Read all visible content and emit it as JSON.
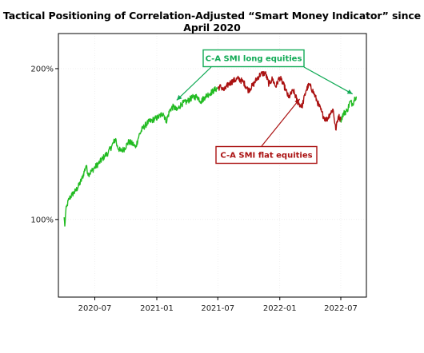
{
  "title": "Tactical Positioning of Correlation-Adjusted “Smart Money Indicator” since April 2020",
  "colors": {
    "long": "#22bb22",
    "flat": "#aa1111",
    "long_annotation": "#11aa55",
    "flat_annotation": "#aa1111",
    "gridline": "#e6e6e6",
    "frame": "#000000"
  },
  "chart_data": {
    "type": "line",
    "title": "Tactical Positioning of Correlation-Adjusted “Smart Money Indicator” since April 2020",
    "xlabel": "",
    "ylabel": "",
    "y_scale": "log",
    "ylim": [
      70,
      235
    ],
    "xlim": [
      "2020-03-15",
      "2022-09-15"
    ],
    "grid": true,
    "x_ticks": [
      "2020-07-01",
      "2021-01-01",
      "2021-07-01",
      "2022-01-01",
      "2022-07-01"
    ],
    "x_tick_labels": [
      "2020-07",
      "2021-01",
      "2021-07",
      "2022-01",
      "2022-07"
    ],
    "y_ticks": [
      100,
      200
    ],
    "y_tick_labels": [
      "100%",
      "200%"
    ],
    "series": [
      {
        "name": "C-A SMI long equities",
        "color": "#22bb22",
        "points": [
          [
            "2020-04-01",
            101
          ],
          [
            "2020-04-03",
            97
          ],
          [
            "2020-04-06",
            104
          ],
          [
            "2020-04-10",
            107
          ],
          [
            "2020-04-16",
            110
          ],
          [
            "2020-04-24",
            112
          ],
          [
            "2020-05-05",
            114
          ],
          [
            "2020-05-15",
            117
          ],
          [
            "2020-05-25",
            121
          ],
          [
            "2020-06-05",
            128
          ],
          [
            "2020-06-12",
            123
          ],
          [
            "2020-06-22",
            125
          ],
          [
            "2020-07-01",
            127
          ],
          [
            "2020-07-15",
            130
          ],
          [
            "2020-07-31",
            134
          ],
          [
            "2020-08-10",
            136
          ],
          [
            "2020-08-20",
            140
          ],
          [
            "2020-09-01",
            145
          ],
          [
            "2020-09-05",
            140
          ],
          [
            "2020-09-15",
            137
          ],
          [
            "2020-09-25",
            138
          ],
          [
            "2020-10-10",
            143
          ],
          [
            "2020-10-25",
            141
          ],
          [
            "2020-10-30",
            139
          ],
          [
            "2020-11-09",
            147
          ],
          [
            "2020-11-20",
            152
          ],
          [
            "2020-12-05",
            156
          ],
          [
            "2020-12-20",
            158
          ],
          [
            "2021-01-05",
            160
          ],
          [
            "2021-01-20",
            163
          ],
          [
            "2021-01-29",
            157
          ],
          [
            "2021-02-10",
            166
          ],
          [
            "2021-02-20",
            168
          ],
          [
            "2021-03-01",
            165
          ],
          [
            "2021-03-15",
            170
          ],
          [
            "2021-04-01",
            172
          ],
          [
            "2021-04-15",
            175
          ],
          [
            "2021-05-01",
            176
          ],
          [
            "2021-05-12",
            172
          ],
          [
            "2021-05-25",
            176
          ],
          [
            "2021-06-10",
            179
          ],
          [
            "2021-06-25",
            182
          ],
          [
            "2021-07-01",
            183
          ]
        ]
      },
      {
        "name": "C-A SMI flat equities",
        "color": "#aa1111",
        "points": [
          [
            "2021-07-01",
            183
          ],
          [
            "2021-07-10",
            184
          ],
          [
            "2021-07-20",
            181
          ],
          [
            "2021-08-01",
            186
          ],
          [
            "2021-08-15",
            189
          ],
          [
            "2021-08-31",
            191
          ],
          [
            "2021-09-15",
            188
          ],
          [
            "2021-09-30",
            181
          ],
          [
            "2021-10-15",
            186
          ],
          [
            "2021-10-25",
            191
          ],
          [
            "2021-11-05",
            195
          ],
          [
            "2021-11-19",
            196
          ],
          [
            "2021-11-30",
            186
          ],
          [
            "2021-12-10",
            191
          ],
          [
            "2021-12-20",
            184
          ],
          [
            "2021-12-31",
            192
          ],
          [
            "2022-01-05",
            190
          ],
          [
            "2022-01-18",
            182
          ],
          [
            "2022-01-27",
            175
          ],
          [
            "2022-02-10",
            181
          ],
          [
            "2022-02-24",
            171
          ],
          [
            "2022-03-08",
            168
          ],
          [
            "2022-03-20",
            181
          ],
          [
            "2022-03-29",
            186
          ],
          [
            "2022-04-10",
            180
          ],
          [
            "2022-04-22",
            172
          ],
          [
            "2022-05-05",
            164
          ],
          [
            "2022-05-12",
            160
          ],
          [
            "2022-05-20",
            158
          ],
          [
            "2022-05-31",
            163
          ],
          [
            "2022-06-08",
            166
          ],
          [
            "2022-06-16",
            151
          ],
          [
            "2022-06-24",
            161
          ],
          [
            "2022-07-01",
            158
          ]
        ]
      },
      {
        "name": "C-A SMI long equities",
        "color": "#22bb22",
        "points": [
          [
            "2022-07-01",
            158
          ],
          [
            "2022-07-10",
            163
          ],
          [
            "2022-07-20",
            165
          ],
          [
            "2022-07-29",
            172
          ],
          [
            "2022-08-05",
            170
          ],
          [
            "2022-08-12",
            175
          ],
          [
            "2022-08-16",
            176
          ]
        ]
      }
    ],
    "annotations": [
      {
        "text": "C-A SMI long equities",
        "color": "#11aa55",
        "arrow_targets": [
          [
            "2021-03-01",
            173
          ],
          [
            "2022-08-05",
            178
          ]
        ]
      },
      {
        "text": "C-A SMI flat equities",
        "color": "#aa1111",
        "arrow_targets": [
          [
            "2022-03-01",
            174
          ]
        ]
      }
    ]
  }
}
